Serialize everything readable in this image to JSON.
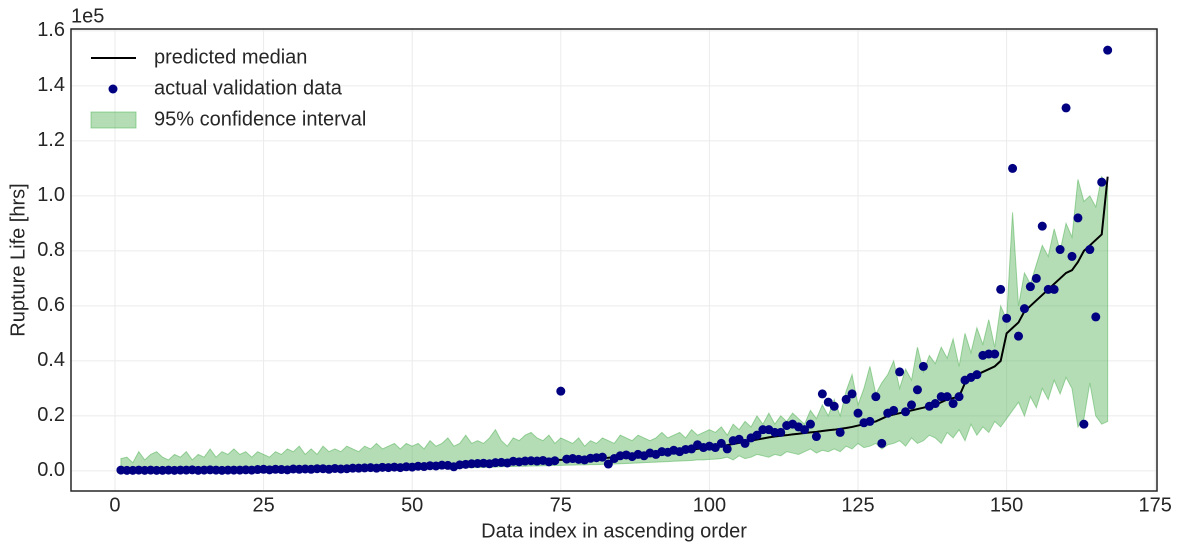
{
  "chart_data": {
    "type": "line",
    "x_label": "Data index in ascending order",
    "y_label": "Rupture Life [hrs]",
    "offset_text": "1e5",
    "xlim": [
      -7.4,
      175.3
    ],
    "ylim": [
      -0.073,
      1.607
    ],
    "xticks": [
      0,
      25,
      50,
      75,
      100,
      125,
      150,
      175
    ],
    "yticks": [
      {
        "value": 0,
        "label": "0.0"
      },
      0.2,
      0.4,
      0.6,
      0.8,
      {
        "value": 1,
        "label": "1.0"
      },
      1.2,
      1.4,
      1.6
    ],
    "grid": true,
    "legend": "upper left",
    "x": [
      1,
      2,
      3,
      4,
      5,
      6,
      7,
      8,
      9,
      10,
      11,
      12,
      13,
      14,
      15,
      16,
      17,
      18,
      19,
      20,
      21,
      22,
      23,
      24,
      25,
      26,
      27,
      28,
      29,
      30,
      31,
      32,
      33,
      34,
      35,
      36,
      37,
      38,
      39,
      40,
      41,
      42,
      43,
      44,
      45,
      46,
      47,
      48,
      49,
      50,
      51,
      52,
      53,
      54,
      55,
      56,
      57,
      58,
      59,
      60,
      61,
      62,
      63,
      64,
      65,
      66,
      67,
      68,
      69,
      70,
      71,
      72,
      73,
      74,
      75,
      76,
      77,
      78,
      79,
      80,
      81,
      82,
      83,
      84,
      85,
      86,
      87,
      88,
      89,
      90,
      91,
      92,
      93,
      94,
      95,
      96,
      97,
      98,
      99,
      100,
      101,
      102,
      103,
      104,
      105,
      106,
      107,
      108,
      109,
      110,
      111,
      112,
      113,
      114,
      115,
      116,
      117,
      118,
      119,
      120,
      121,
      122,
      123,
      124,
      125,
      126,
      127,
      128,
      129,
      130,
      131,
      132,
      133,
      134,
      135,
      136,
      137,
      138,
      139,
      140,
      141,
      142,
      143,
      144,
      145,
      146,
      147,
      148,
      149,
      150,
      151,
      152,
      153,
      154,
      155,
      156,
      157,
      158,
      159,
      160,
      161,
      162,
      163,
      164,
      165,
      166,
      167
    ],
    "series": [
      {
        "name": "predicted median",
        "color": "#000000",
        "kind": "line",
        "values": [
          0.002,
          0.002,
          0.003,
          0.003,
          0.003,
          0.003,
          0.003,
          0.003,
          0.003,
          0.003,
          0.003,
          0.004,
          0.004,
          0.004,
          0.004,
          0.004,
          0.004,
          0.004,
          0.004,
          0.004,
          0.004,
          0.005,
          0.005,
          0.005,
          0.005,
          0.005,
          0.005,
          0.006,
          0.006,
          0.006,
          0.006,
          0.006,
          0.007,
          0.007,
          0.007,
          0.008,
          0.008,
          0.008,
          0.009,
          0.009,
          0.01,
          0.01,
          0.011,
          0.011,
          0.012,
          0.012,
          0.013,
          0.013,
          0.014,
          0.015,
          0.016,
          0.017,
          0.018,
          0.019,
          0.02,
          0.021,
          0.022,
          0.023,
          0.024,
          0.025,
          0.026,
          0.027,
          0.028,
          0.029,
          0.03,
          0.031,
          0.033,
          0.034,
          0.035,
          0.036,
          0.037,
          0.038,
          0.039,
          0.04,
          0.04,
          0.041,
          0.042,
          0.043,
          0.044,
          0.045,
          0.046,
          0.047,
          0.048,
          0.05,
          0.052,
          0.054,
          0.056,
          0.058,
          0.06,
          0.062,
          0.064,
          0.066,
          0.068,
          0.07,
          0.072,
          0.075,
          0.078,
          0.08,
          0.083,
          0.086,
          0.088,
          0.091,
          0.094,
          0.098,
          0.102,
          0.106,
          0.11,
          0.114,
          0.118,
          0.122,
          0.125,
          0.128,
          0.13,
          0.133,
          0.135,
          0.138,
          0.14,
          0.142,
          0.145,
          0.148,
          0.15,
          0.153,
          0.156,
          0.16,
          0.165,
          0.17,
          0.175,
          0.18,
          0.19,
          0.2,
          0.205,
          0.21,
          0.215,
          0.22,
          0.225,
          0.23,
          0.235,
          0.24,
          0.25,
          0.26,
          0.265,
          0.27,
          0.32,
          0.34,
          0.35,
          0.36,
          0.37,
          0.38,
          0.4,
          0.5,
          0.52,
          0.54,
          0.58,
          0.6,
          0.62,
          0.64,
          0.66,
          0.68,
          0.7,
          0.72,
          0.73,
          0.76,
          0.8,
          0.82,
          0.84,
          0.86,
          1.07
        ]
      },
      {
        "name": "actual validation data",
        "color": "#000080",
        "kind": "scatter",
        "values": [
          0.003,
          0.002,
          0.002,
          0.003,
          0.002,
          0.003,
          0.002,
          0.002,
          0.003,
          0.002,
          0.003,
          0.003,
          0.004,
          0.002,
          0.003,
          0.004,
          0.003,
          0.002,
          0.003,
          0.003,
          0.003,
          0.004,
          0.003,
          0.005,
          0.006,
          0.004,
          0.006,
          0.005,
          0.004,
          0.007,
          0.006,
          0.007,
          0.006,
          0.008,
          0.008,
          0.006,
          0.009,
          0.007,
          0.008,
          0.01,
          0.01,
          0.011,
          0.012,
          0.01,
          0.013,
          0.012,
          0.014,
          0.012,
          0.015,
          0.014,
          0.017,
          0.016,
          0.019,
          0.018,
          0.021,
          0.02,
          0.015,
          0.022,
          0.024,
          0.026,
          0.027,
          0.028,
          0.026,
          0.03,
          0.031,
          0.029,
          0.035,
          0.033,
          0.036,
          0.037,
          0.036,
          0.038,
          0.033,
          0.037,
          0.29,
          0.043,
          0.045,
          0.042,
          0.04,
          0.046,
          0.048,
          0.05,
          0.025,
          0.045,
          0.055,
          0.058,
          0.052,
          0.06,
          0.055,
          0.065,
          0.06,
          0.07,
          0.068,
          0.075,
          0.07,
          0.078,
          0.08,
          0.095,
          0.085,
          0.09,
          0.085,
          0.1,
          0.08,
          0.11,
          0.115,
          0.1,
          0.12,
          0.13,
          0.15,
          0.15,
          0.14,
          0.14,
          0.165,
          0.17,
          0.16,
          0.15,
          0.17,
          0.125,
          0.28,
          0.25,
          0.235,
          0.14,
          0.26,
          0.28,
          0.21,
          0.175,
          0.18,
          0.27,
          0.1,
          0.21,
          0.22,
          0.36,
          0.215,
          0.24,
          0.295,
          0.38,
          0.235,
          0.245,
          0.27,
          0.27,
          0.245,
          0.27,
          0.33,
          0.34,
          0.35,
          0.42,
          0.425,
          0.425,
          0.66,
          0.555,
          1.1,
          0.49,
          0.59,
          0.67,
          0.7,
          0.89,
          0.66,
          0.66,
          0.805,
          1.32,
          0.78,
          0.92,
          0.17,
          0.805,
          0.56,
          1.05,
          1.53
        ]
      },
      {
        "name": "95% confidence interval",
        "color": "#4caf50",
        "kind": "band",
        "lower": [
          0,
          0,
          0,
          0,
          0,
          0,
          0,
          0,
          0,
          0,
          0,
          0,
          0,
          0,
          0,
          0,
          0,
          0,
          0,
          0,
          0,
          0,
          0,
          0,
          0,
          0,
          0,
          0,
          0.002,
          0,
          0.001,
          0.002,
          0.001,
          0.002,
          0.002,
          0.002,
          0.003,
          0.002,
          0.003,
          0.003,
          0.003,
          0.004,
          0.003,
          0.004,
          0.004,
          0.004,
          0.005,
          0.004,
          0.005,
          0.005,
          0.006,
          0.007,
          0.008,
          0.007,
          0.009,
          0.009,
          0.01,
          0.01,
          0.011,
          0.012,
          0.012,
          0.013,
          0.013,
          0.014,
          0.015,
          0.016,
          0.016,
          0.017,
          0.017,
          0.018,
          0.018,
          0.019,
          0.019,
          0.02,
          0.02,
          0.021,
          0.021,
          0.022,
          0.022,
          0.023,
          0.023,
          0.024,
          0.025,
          0.025,
          0.026,
          0.027,
          0.028,
          0.029,
          0.03,
          0.031,
          0.032,
          0.033,
          0.034,
          0.035,
          0.036,
          0.037,
          0.038,
          0.04,
          0.04,
          0.042,
          0.043,
          0.045,
          0.05,
          0.04,
          0.055,
          0.045,
          0.05,
          0.06,
          0.055,
          0.05,
          0.06,
          0.055,
          0.07,
          0.065,
          0.06,
          0.07,
          0.08,
          0.065,
          0.075,
          0.07,
          0.08,
          0.07,
          0.09,
          0.08,
          0.1,
          0.085,
          0.09,
          0.1,
          0.08,
          0.095,
          0.1,
          0.11,
          0.09,
          0.12,
          0.1,
          0.11,
          0.13,
          0.12,
          0.1,
          0.14,
          0.12,
          0.15,
          0.11,
          0.17,
          0.13,
          0.16,
          0.14,
          0.18,
          0.16,
          0.19,
          0.22,
          0.25,
          0.2,
          0.27,
          0.23,
          0.3,
          0.26,
          0.33,
          0.28,
          0.34,
          0.3,
          0.16,
          0.19,
          0.32,
          0.2,
          0.17,
          0.18
        ],
        "upper": [
          0.045,
          0.05,
          0.03,
          0.07,
          0.04,
          0.06,
          0.07,
          0.05,
          0.04,
          0.06,
          0.05,
          0.07,
          0.04,
          0.06,
          0.05,
          0.08,
          0.05,
          0.07,
          0.06,
          0.08,
          0.06,
          0.07,
          0.05,
          0.07,
          0.06,
          0.05,
          0.07,
          0.06,
          0.08,
          0.07,
          0.09,
          0.06,
          0.08,
          0.06,
          0.09,
          0.07,
          0.08,
          0.07,
          0.09,
          0.08,
          0.07,
          0.09,
          0.08,
          0.1,
          0.08,
          0.09,
          0.1,
          0.08,
          0.1,
          0.09,
          0.1,
          0.08,
          0.11,
          0.09,
          0.1,
          0.12,
          0.09,
          0.1,
          0.13,
          0.1,
          0.11,
          0.1,
          0.12,
          0.15,
          0.11,
          0.09,
          0.12,
          0.11,
          0.13,
          0.14,
          0.12,
          0.11,
          0.13,
          0.1,
          0.12,
          0.11,
          0.1,
          0.12,
          0.09,
          0.11,
          0.1,
          0.12,
          0.11,
          0.1,
          0.13,
          0.12,
          0.11,
          0.13,
          0.12,
          0.11,
          0.12,
          0.14,
          0.12,
          0.13,
          0.14,
          0.12,
          0.15,
          0.13,
          0.14,
          0.15,
          0.14,
          0.16,
          0.13,
          0.17,
          0.15,
          0.18,
          0.16,
          0.2,
          0.17,
          0.21,
          0.17,
          0.2,
          0.18,
          0.21,
          0.19,
          0.17,
          0.22,
          0.19,
          0.24,
          0.2,
          0.26,
          0.2,
          0.29,
          0.35,
          0.24,
          0.3,
          0.38,
          0.28,
          0.32,
          0.35,
          0.4,
          0.3,
          0.37,
          0.33,
          0.45,
          0.36,
          0.42,
          0.39,
          0.45,
          0.41,
          0.48,
          0.38,
          0.5,
          0.43,
          0.52,
          0.46,
          0.55,
          0.45,
          0.6,
          0.55,
          0.94,
          0.6,
          0.72,
          0.68,
          0.75,
          0.82,
          0.78,
          0.88,
          0.8,
          0.9,
          0.85,
          1.06,
          0.98,
          1.0,
          0.96,
          1.07,
          1.04
        ]
      }
    ]
  }
}
